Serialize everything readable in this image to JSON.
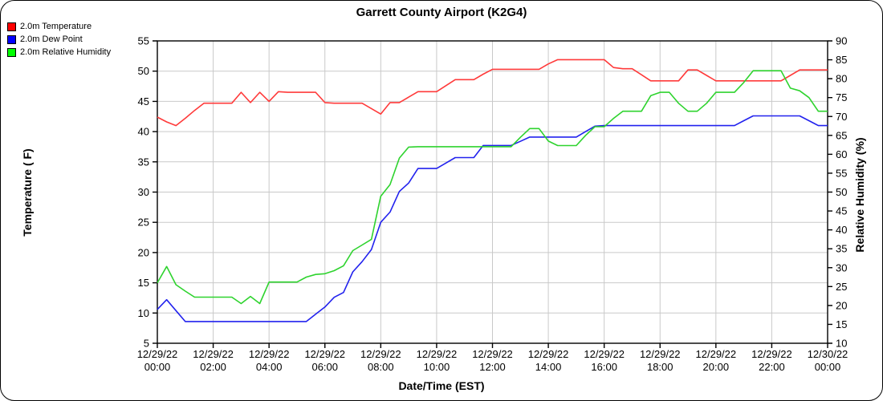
{
  "title": "Garrett County Airport (K2G4)",
  "legend": {
    "items": [
      {
        "label": "2.0m Temperature",
        "swatch_color": "#ff0000"
      },
      {
        "label": "2.0m Dew Point",
        "swatch_color": "#0000ff"
      },
      {
        "label": "2.0m Relative Humidity",
        "swatch_color": "#00ff00"
      }
    ]
  },
  "chart_data": {
    "type": "line",
    "title": "Garrett County Airport (K2G4)",
    "xlabel": "Date/Time (EST)",
    "ylabel_left": "Temperature ( F)",
    "ylabel_right": "Relative Humidity (%)",
    "grid": true,
    "grid_color": "#c9c9c9",
    "x_range_hours": [
      0,
      24
    ],
    "x_tick_interval_hours": 2,
    "x_tick_labels": [
      {
        "date": "12/29/22",
        "time": "00:00"
      },
      {
        "date": "12/29/22",
        "time": "02:00"
      },
      {
        "date": "12/29/22",
        "time": "04:00"
      },
      {
        "date": "12/29/22",
        "time": "06:00"
      },
      {
        "date": "12/29/22",
        "time": "08:00"
      },
      {
        "date": "12/29/22",
        "time": "10:00"
      },
      {
        "date": "12/29/22",
        "time": "12:00"
      },
      {
        "date": "12/29/22",
        "time": "14:00"
      },
      {
        "date": "12/29/22",
        "time": "16:00"
      },
      {
        "date": "12/29/22",
        "time": "18:00"
      },
      {
        "date": "12/29/22",
        "time": "20:00"
      },
      {
        "date": "12/29/22",
        "time": "22:00"
      },
      {
        "date": "12/30/22",
        "time": "00:00"
      }
    ],
    "y_left": {
      "range": [
        5,
        55
      ],
      "ticks": [
        55,
        50,
        45,
        40,
        35,
        30,
        25,
        20,
        15,
        10,
        5
      ]
    },
    "y_right": {
      "range": [
        10,
        90
      ],
      "ticks": [
        90,
        85,
        80,
        75,
        70,
        65,
        60,
        55,
        50,
        45,
        40,
        35,
        30,
        25,
        20,
        15,
        10
      ]
    },
    "sample_interval_minutes": 20,
    "series": [
      {
        "name": "2.0m Temperature",
        "axis": "left",
        "color": "#ff3a3a",
        "values": [
          42.4,
          41.6,
          41.0,
          42.2,
          43.5,
          44.7,
          44.7,
          44.7,
          44.7,
          46.5,
          44.8,
          46.5,
          45.0,
          46.6,
          46.5,
          46.5,
          46.5,
          46.5,
          44.8,
          44.7,
          44.7,
          44.7,
          44.7,
          43.8,
          42.9,
          44.8,
          44.8,
          45.7,
          46.6,
          46.6,
          46.6,
          47.6,
          48.6,
          48.6,
          48.6,
          49.5,
          50.3,
          50.3,
          50.3,
          50.3,
          50.3,
          50.3,
          51.2,
          51.9,
          51.9,
          51.9,
          51.9,
          51.9,
          51.9,
          50.6,
          50.4,
          50.4,
          49.4,
          48.4,
          48.4,
          48.4,
          48.4,
          50.2,
          50.2,
          49.3,
          48.4,
          48.4,
          48.4,
          48.4,
          48.4,
          48.4,
          48.4,
          48.4,
          49.3,
          50.2,
          50.2,
          50.2,
          50.2
        ]
      },
      {
        "name": "2.0m Dew Point",
        "axis": "left",
        "color": "#2222ee",
        "values": [
          10.6,
          12.2,
          10.4,
          8.6,
          8.6,
          8.6,
          8.6,
          8.6,
          8.6,
          8.6,
          8.6,
          8.6,
          8.6,
          8.6,
          8.6,
          8.6,
          8.6,
          9.8,
          11.0,
          12.6,
          13.4,
          16.8,
          18.5,
          20.5,
          25.0,
          26.7,
          30.1,
          31.5,
          33.9,
          33.9,
          33.9,
          34.8,
          35.7,
          35.7,
          35.7,
          37.7,
          37.7,
          37.7,
          37.7,
          38.4,
          39.1,
          39.1,
          39.1,
          39.1,
          39.1,
          39.1,
          40.0,
          40.9,
          41.0,
          41.0,
          41.0,
          41.0,
          41.0,
          41.0,
          41.0,
          41.0,
          41.0,
          41.0,
          41.0,
          41.0,
          41.0,
          41.0,
          41.0,
          41.8,
          42.6,
          42.6,
          42.6,
          42.6,
          42.6,
          42.6,
          41.8,
          41.0,
          41.0
        ]
      },
      {
        "name": "2.0m Relative Humidity",
        "axis": "right",
        "color": "#2ed32e",
        "values": [
          26.0,
          30.3,
          25.5,
          23.8,
          22.2,
          22.2,
          22.2,
          22.2,
          22.2,
          20.5,
          22.4,
          20.5,
          26.2,
          26.2,
          26.2,
          26.2,
          27.5,
          28.2,
          28.4,
          29.2,
          30.5,
          34.5,
          36.0,
          37.5,
          48.9,
          52.0,
          59.0,
          61.9,
          62.0,
          62.0,
          62.0,
          62.0,
          62.0,
          62.0,
          62.0,
          62.0,
          62.0,
          62.0,
          62.0,
          64.5,
          66.8,
          66.8,
          63.5,
          62.3,
          62.3,
          62.3,
          65.0,
          67.3,
          67.3,
          69.5,
          71.4,
          71.4,
          71.4,
          75.5,
          76.4,
          76.4,
          73.5,
          71.4,
          71.4,
          73.5,
          76.4,
          76.4,
          76.4,
          79.0,
          82.1,
          82.1,
          82.1,
          82.1,
          77.5,
          76.8,
          75.0,
          71.4,
          71.4
        ]
      }
    ]
  }
}
